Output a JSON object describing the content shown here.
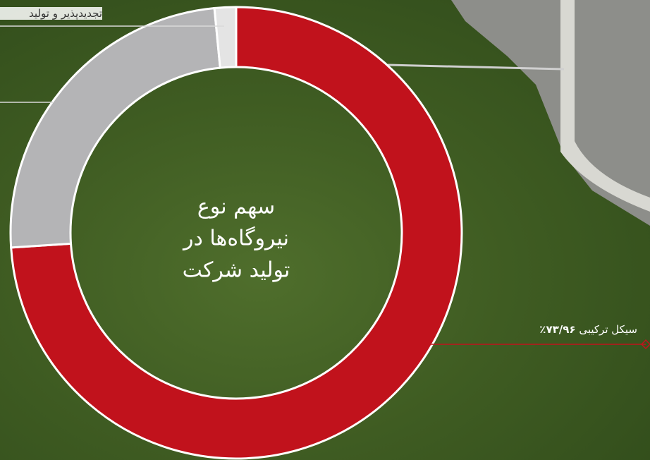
{
  "chart_data": {
    "type": "donut",
    "title": [
      "سهم نوع",
      "نیروگاه‌ها در",
      "تولید شرکت"
    ],
    "categories": [
      "سیکل ترکیبی",
      null,
      "تجدیدپذیر و تولید"
    ],
    "values": [
      73.96,
      24.5,
      1.54
    ],
    "value_labels": [
      "۷۳/۹۶٪",
      null,
      null
    ],
    "colors": [
      "#c1121c",
      "#b4b4b6",
      "#e4e4e4"
    ]
  }
}
